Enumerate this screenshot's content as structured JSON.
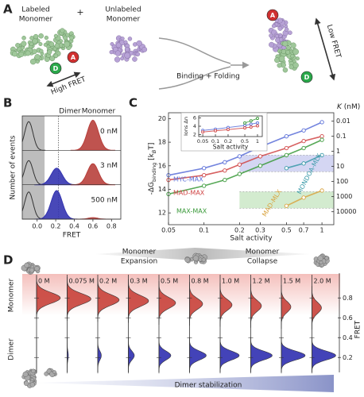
{
  "panel_labels": [
    "A",
    "B",
    "C",
    "D"
  ],
  "panel_a": {
    "labeled": [
      "Labeled",
      "Monomer"
    ],
    "plus": "+",
    "unlabeled": [
      "Unlabeled",
      "Monomer"
    ],
    "acceptor": "A",
    "donor": "D",
    "high_fret": "High FRET",
    "process": "Binding + Folding",
    "low_fret": "Low FRET"
  },
  "chart_data": [
    {
      "type": "ridgeline",
      "xlabel": "FRET",
      "ylabel": "Number of events",
      "header": [
        "Dimer",
        "Monomer"
      ],
      "xlim": [
        -0.16,
        0.9
      ],
      "xticks": [
        {
          "value": 0,
          "label": "0.0"
        },
        0.2,
        0.4,
        0.6,
        0.8
      ],
      "shade_below": 0.08,
      "threshold": 0.23,
      "rows": [
        {
          "name": "0 nM",
          "components": [
            {
              "mean": -0.09,
              "sd": 0.045,
              "amplitude": 0.95,
              "color": "#333333"
            },
            {
              "mean": 0.6,
              "sd": 0.06,
              "amplitude": 1.0,
              "color": "#b8403c"
            }
          ]
        },
        {
          "name": "3 nM",
          "components": [
            {
              "mean": -0.09,
              "sd": 0.045,
              "amplitude": 0.8,
              "color": "#333333"
            },
            {
              "mean": 0.21,
              "sd": 0.06,
              "amplitude": 0.55,
              "color": "#3434b0"
            },
            {
              "mean": 0.6,
              "sd": 0.06,
              "amplitude": 0.7,
              "color": "#b8403c"
            }
          ]
        },
        {
          "name": "500 nM",
          "components": [
            {
              "mean": -0.09,
              "sd": 0.045,
              "amplitude": 0.9,
              "color": "#333333"
            },
            {
              "mean": 0.21,
              "sd": 0.06,
              "amplitude": 0.95,
              "color": "#3434b0"
            },
            {
              "mean": 0.6,
              "sd": 0.05,
              "amplitude": 0.05,
              "color": "#b8403c"
            }
          ]
        }
      ]
    },
    {
      "type": "line",
      "xlabel": "Salt activity",
      "ylabel_parts": [
        "-ΔG",
        "binding",
        " [k",
        "B",
        "T]"
      ],
      "y2label_parts": [
        "K",
        " (nM)"
      ],
      "xscale": "log",
      "xlim": [
        0.05,
        1.26
      ],
      "xticks": [
        0.05,
        0.1,
        0.2,
        0.3,
        0.5,
        0.7,
        1
      ],
      "ylim": [
        11,
        20.5
      ],
      "yticks": [
        12,
        14,
        16,
        18,
        20
      ],
      "y2scale": "log",
      "y2lim": [
        71900,
        0.00285
      ],
      "y2ticks": [
        0.01,
        0.1,
        1,
        10,
        100,
        1000,
        10000
      ],
      "bands": [
        {
          "range": [
            15.5,
            16.9
          ],
          "x_from": 0.2,
          "color": "#d4d6f3"
        },
        {
          "range": [
            12.4,
            13.8
          ],
          "x_from": 0.2,
          "color": "#d3ebcf"
        }
      ],
      "series": [
        {
          "name": "MYC-MAX",
          "color": "#5a6fd8",
          "x": [
            0.05,
            0.1,
            0.15,
            0.2,
            0.3,
            0.5,
            0.7,
            1.0
          ],
          "values": [
            15.2,
            15.8,
            16.3,
            16.8,
            17.6,
            18.5,
            19.0,
            19.7
          ]
        },
        {
          "name": "MAD-MAX",
          "color": "#d04545",
          "x": [
            0.05,
            0.1,
            0.15,
            0.2,
            0.3,
            0.5,
            0.7,
            1.0
          ],
          "values": [
            14.8,
            15.2,
            15.6,
            16.1,
            16.8,
            17.5,
            18.1,
            18.5
          ]
        },
        {
          "name": "MAX-MAX",
          "color": "#3a9a3a",
          "x": [
            0.05,
            0.1,
            0.15,
            0.2,
            0.3,
            0.5,
            0.7,
            1.0
          ],
          "values": [
            13.6,
            14.3,
            14.8,
            15.3,
            16.0,
            16.9,
            17.5,
            18.2
          ]
        },
        {
          "name": "MONDOA-MLX",
          "color": "#3a9aa8",
          "x": [
            0.5,
            0.7,
            1.0
          ],
          "values": [
            15.8,
            16.2,
            16.9
          ]
        },
        {
          "name": "MAD-MLX",
          "color": "#d9a441",
          "x": [
            0.5,
            0.7,
            1.0
          ],
          "values": [
            12.6,
            13.3,
            13.9
          ]
        }
      ]
    },
    {
      "type": "line",
      "xlabel": "Salt activity",
      "ylabel": "Ions Δn",
      "xscale": "log",
      "xlim": [
        0.04,
        1.3
      ],
      "xticks": [
        0.05,
        0.1,
        0.2,
        0.5,
        1
      ],
      "ylim": [
        1.5,
        6.5
      ],
      "yticks": [
        2,
        4,
        6
      ],
      "series": [
        {
          "color": "#5a6fd8",
          "x": [
            0.05,
            0.1,
            0.2,
            0.5,
            0.7,
            1.0
          ],
          "values": [
            3.0,
            3.3,
            3.7,
            4.2,
            4.5,
            4.8
          ]
        },
        {
          "color": "#d04545",
          "x": [
            0.05,
            0.1,
            0.2,
            0.5,
            0.7,
            1.0
          ],
          "values": [
            2.6,
            2.9,
            3.2,
            3.6,
            3.8,
            4.1
          ]
        },
        {
          "color": "#3a9a3a",
          "x": [
            0.5,
            0.7,
            1.0
          ],
          "values": [
            4.8,
            5.3,
            5.9
          ]
        }
      ]
    },
    {
      "type": "ridgeline",
      "categories": [
        "0 M",
        "0.075 M",
        "0.2 M",
        "0.3 M",
        "0.5 M",
        "0.8 M",
        "1.0 M",
        "1.2 M",
        "1.5 M",
        "2.0 M"
      ],
      "ylabel": "FRET",
      "ylim": [
        0.05,
        1.05
      ],
      "yticks": [
        0.2,
        0.4,
        0.6,
        0.8
      ],
      "top_labels": [
        [
          "Monomer",
          "Expansion"
        ],
        [
          "Monomer",
          "Collapse"
        ]
      ],
      "bottom_label": "Dimer stabilization",
      "series": [
        {
          "name": "Monomer",
          "color": "#c8413a",
          "sd": 0.055,
          "means": [
            0.8,
            0.79,
            0.78,
            0.77,
            0.75,
            0.74,
            0.73,
            0.72,
            0.71,
            0.7
          ],
          "amplitudes": [
            1.0,
            1.0,
            0.9,
            0.85,
            0.7,
            0.55,
            0.5,
            0.45,
            0.4,
            0.4
          ]
        },
        {
          "name": "Dimer",
          "color": "#2f2fb0",
          "sd": 0.045,
          "means": [
            0.22,
            0.22,
            0.22,
            0.22,
            0.22,
            0.22,
            0.22,
            0.22,
            0.22,
            0.22
          ],
          "amplitudes": [
            0.0,
            0.05,
            0.15,
            0.25,
            0.5,
            0.7,
            0.8,
            0.9,
            1.0,
            1.0
          ]
        }
      ]
    }
  ]
}
